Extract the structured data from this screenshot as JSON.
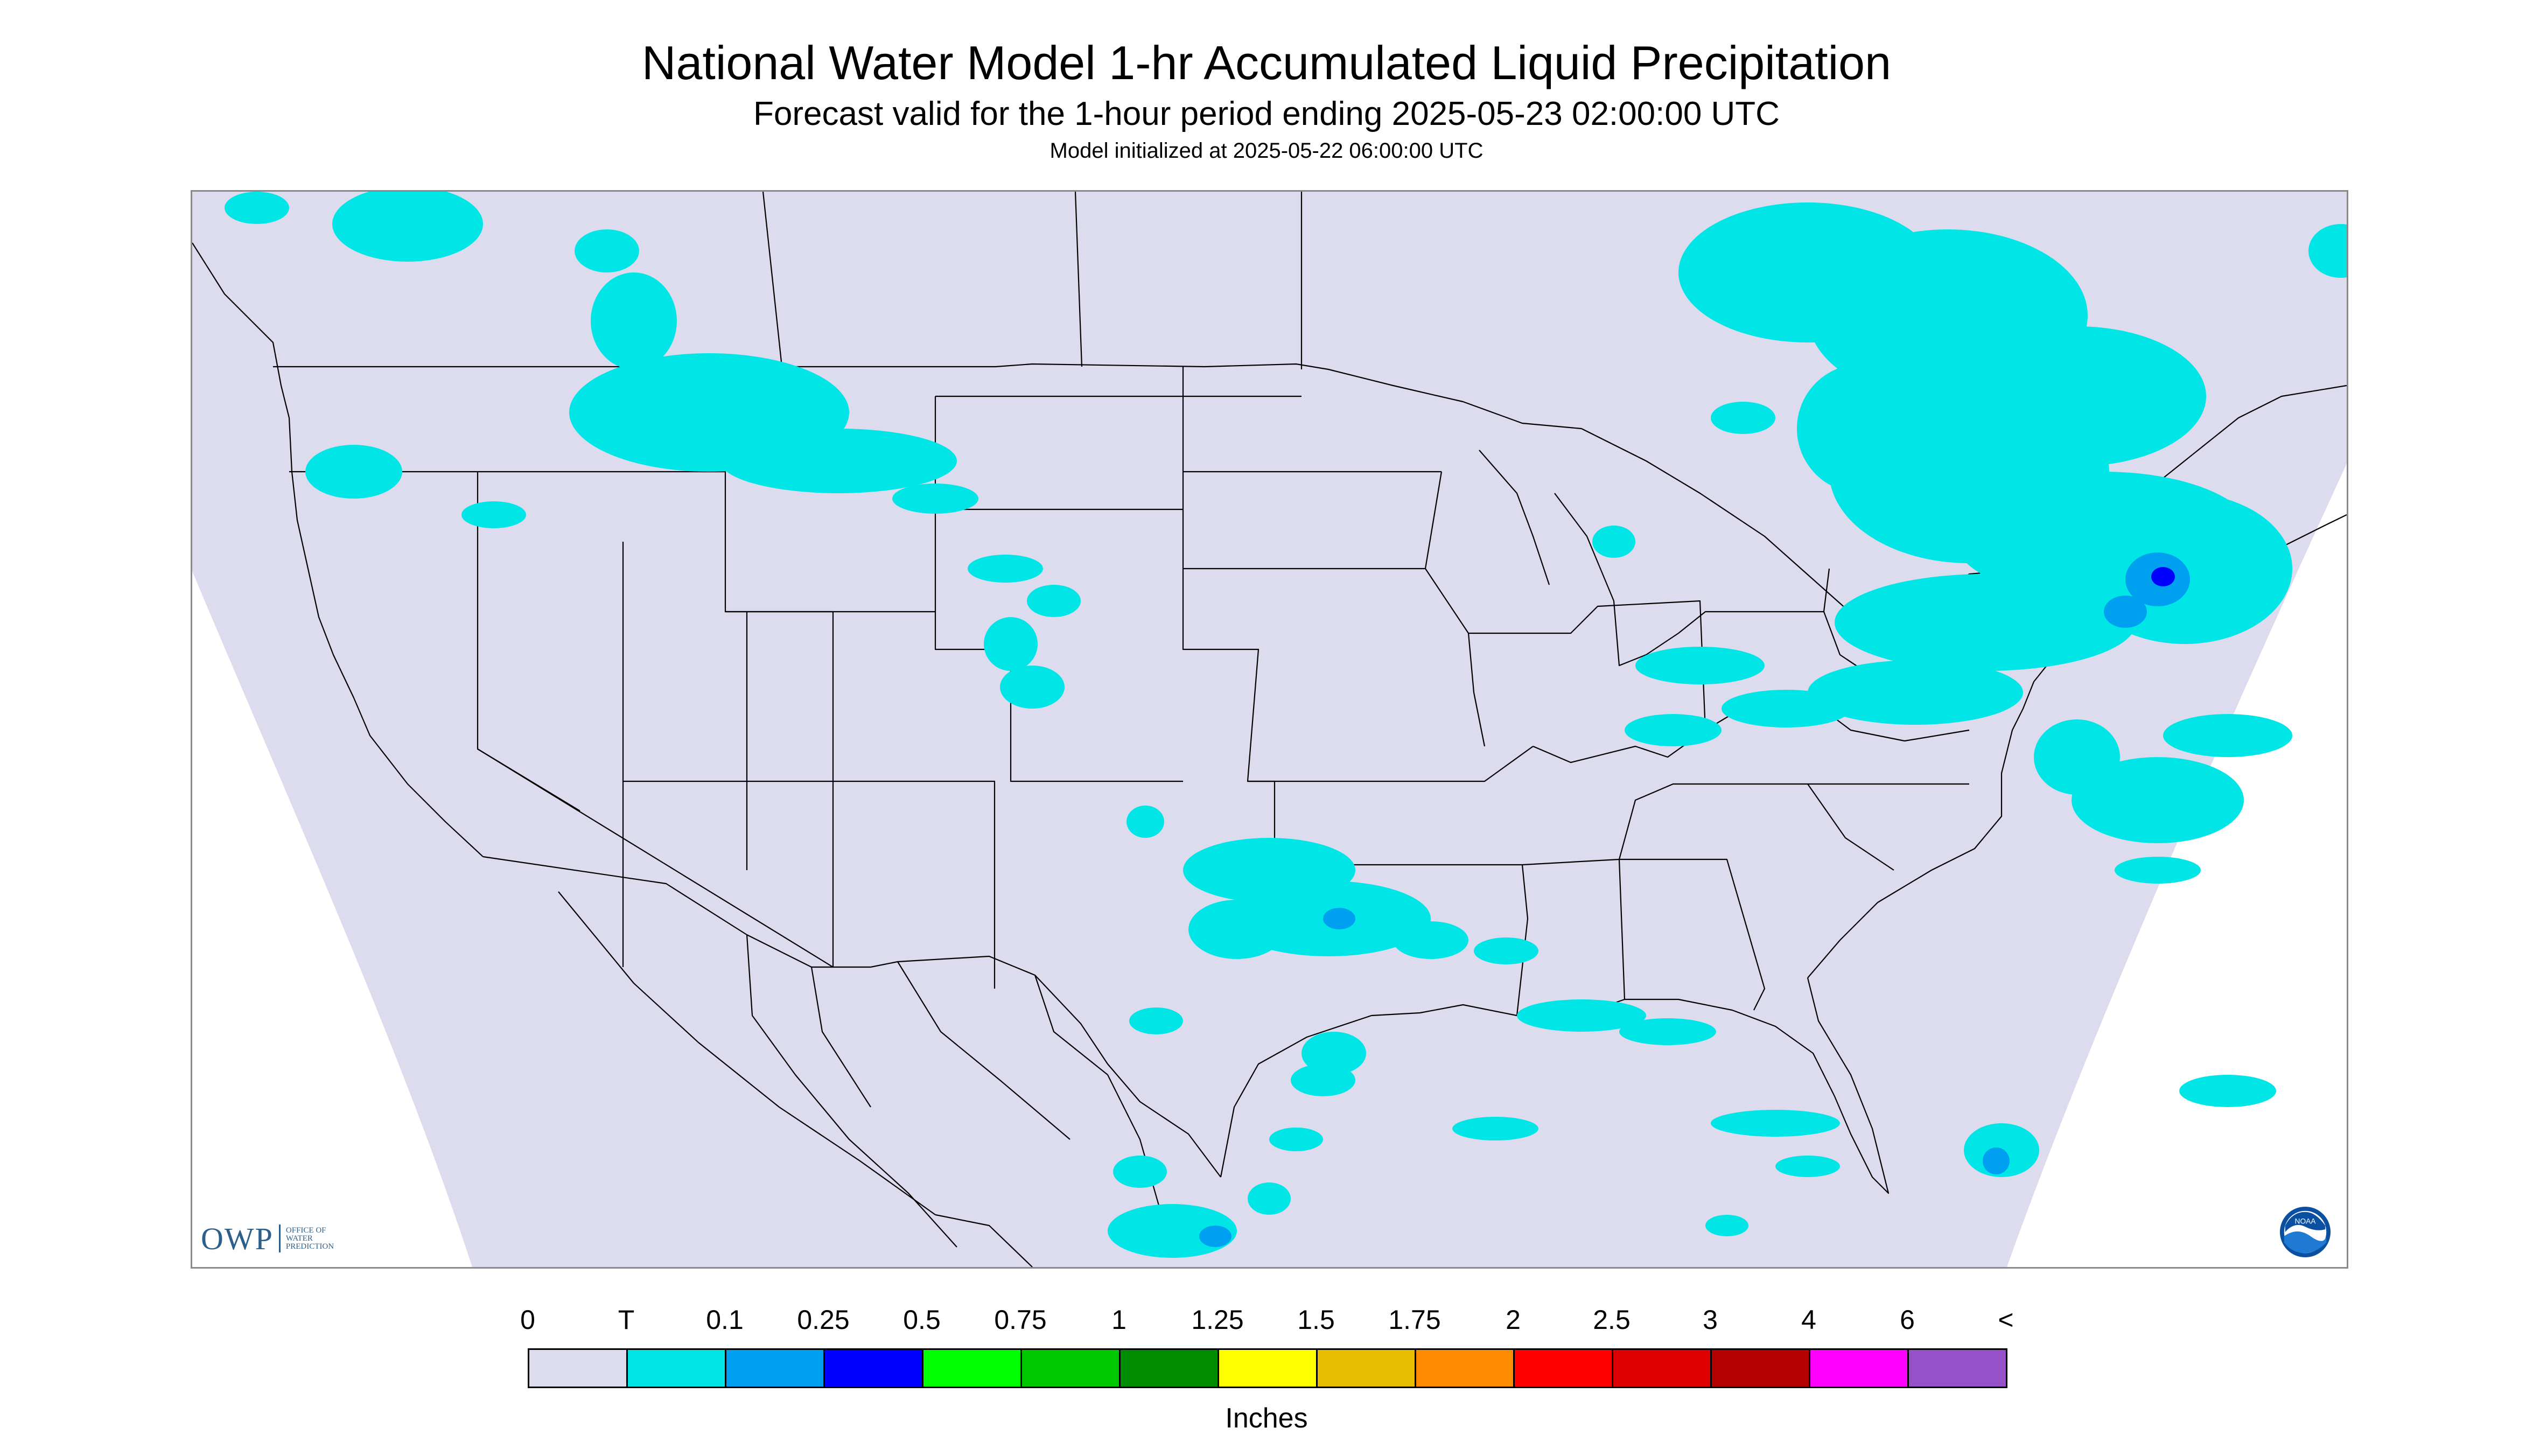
{
  "title": "National Water Model 1-hr Accumulated Liquid Precipitation",
  "subtitle": "Forecast valid for the 1-hour period ending 2025-05-23 02:00:00 UTC",
  "init_text": "Model initialized at 2025-05-22 06:00:00 UTC",
  "map": {
    "background_color": "#dcdcee",
    "outside_domain_color": "#ffffff",
    "boundary_color": "#000000",
    "precip_light_color": "#00e6e6",
    "precip_moderate_color": "#00a0f0",
    "precip_heavy_color": "#0000ff",
    "logos": {
      "owp_mark": "OWP",
      "owp_text": "OFFICE OF\nWATER\nPREDICTION",
      "noaa": "NOAA"
    }
  },
  "legend": {
    "labels": [
      "0",
      "T",
      "0.1",
      "0.25",
      "0.5",
      "0.75",
      "1",
      "1.25",
      "1.5",
      "1.75",
      "2",
      "2.5",
      "3",
      "4",
      "6",
      "<"
    ],
    "colors": [
      "#dcdcee",
      "#00e6e6",
      "#00a0f0",
      "#0000ff",
      "#00ff00",
      "#00c800",
      "#008c00",
      "#ffff00",
      "#e6be00",
      "#ff8c00",
      "#ff0000",
      "#dc0000",
      "#b40000",
      "#ff00ff",
      "#9650c8"
    ],
    "units": "Inches"
  }
}
